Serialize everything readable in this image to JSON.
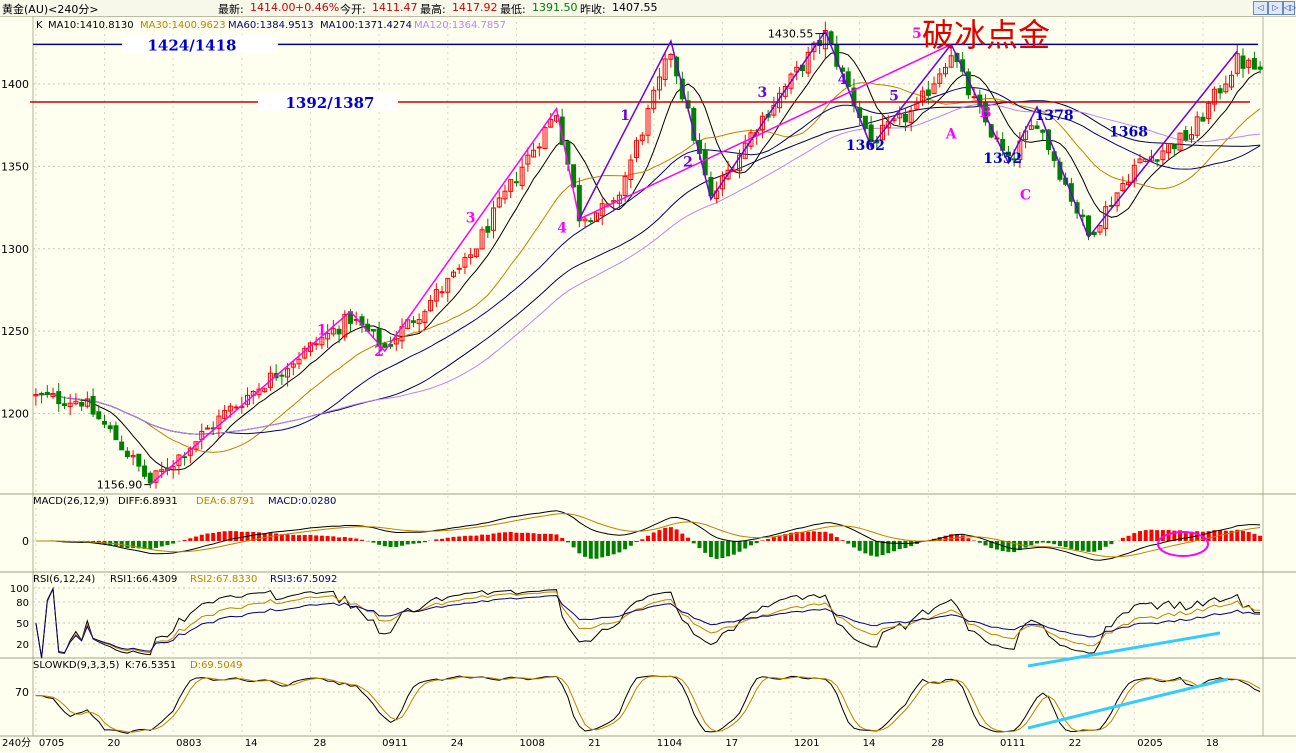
{
  "header": {
    "symbol": "黄金(AU)<240分>",
    "latest_label": "最新:",
    "latest_value": "1414.00",
    "change": "+0.46%",
    "open_label": "今开:",
    "open_value": "1411.47",
    "high_label": "最高:",
    "high_value": "1417.92",
    "low_label": "最低:",
    "low_value": "1391.50",
    "prev_close_label": "昨收:",
    "prev_close_value": "1407.55"
  },
  "nav_buttons": [
    "◁",
    "▷",
    "◁▷"
  ],
  "colors": {
    "ma10": "#000000",
    "ma30": "#c08000",
    "ma60": "#000080",
    "ma100": "#00004a",
    "ma120": "#c080ff",
    "up": "#ff0000",
    "down": "#008000",
    "magenta": "#ff00ff",
    "wave": "#7000e0",
    "annot": "#0000cc",
    "res": "#00008b",
    "sup": "#cc0000",
    "trend": "#33ccff"
  },
  "chart_data": [
    {
      "type": "candlestick",
      "panel": "price",
      "ma_legend": {
        "k": "K",
        "ma10": "MA10:1410.8130",
        "ma30": "MA30:1400.9623",
        "ma60": "MA60:1384.9513",
        "ma100": "MA100:1371.4274",
        "ma120": "MA120:1364.7857"
      },
      "ylim": [
        1150,
        1440
      ],
      "yticks": [
        1200,
        1250,
        1300,
        1350,
        1400
      ],
      "xlabel_prefix": "240分",
      "xticks": [
        {
          "i": 0,
          "label": "0705"
        },
        {
          "i": 12,
          "label": "20"
        },
        {
          "i": 24,
          "label": "0803"
        },
        {
          "i": 36,
          "label": "14"
        },
        {
          "i": 48,
          "label": "28"
        },
        {
          "i": 60,
          "label": "0911"
        },
        {
          "i": 72,
          "label": "24"
        },
        {
          "i": 84,
          "label": "1008"
        },
        {
          "i": 96,
          "label": "21"
        },
        {
          "i": 108,
          "label": "1104"
        },
        {
          "i": 120,
          "label": "17"
        },
        {
          "i": 132,
          "label": "1201"
        },
        {
          "i": 144,
          "label": "14"
        },
        {
          "i": 156,
          "label": "28"
        },
        {
          "i": 168,
          "label": "0111"
        },
        {
          "i": 180,
          "label": "22"
        },
        {
          "i": 192,
          "label": "0205"
        },
        {
          "i": 204,
          "label": "18"
        }
      ],
      "bar_count": 215,
      "anchors": [
        [
          0,
          1210
        ],
        [
          8,
          1208
        ],
        [
          14,
          1185
        ],
        [
          20,
          1158
        ],
        [
          33,
          1200
        ],
        [
          44,
          1230
        ],
        [
          55,
          1258
        ],
        [
          61,
          1240
        ],
        [
          75,
          1290
        ],
        [
          85,
          1350
        ],
        [
          91,
          1383
        ],
        [
          95,
          1320
        ],
        [
          101,
          1325
        ],
        [
          111,
          1420
        ],
        [
          118,
          1330
        ],
        [
          126,
          1375
        ],
        [
          138,
          1430
        ],
        [
          146,
          1365
        ],
        [
          154,
          1385
        ],
        [
          160,
          1420
        ],
        [
          163,
          1395
        ],
        [
          170,
          1352
        ],
        [
          175,
          1378
        ],
        [
          184,
          1308
        ],
        [
          192,
          1350
        ],
        [
          202,
          1370
        ],
        [
          210,
          1414
        ],
        [
          214,
          1408
        ]
      ],
      "resistance": {
        "value": 1424,
        "label": "1424/1418"
      },
      "support": {
        "value": 1389,
        "label": "1392/1387"
      },
      "high_marker": {
        "i": 138,
        "value": 1430.55,
        "label": "1430.55"
      },
      "low_marker": {
        "i": 20,
        "value": 1156.9,
        "label": "1156.90"
      },
      "level_labels": [
        {
          "i": 145,
          "v": 1360,
          "text": "1362"
        },
        {
          "i": 169,
          "v": 1352,
          "text": "1352"
        },
        {
          "i": 178,
          "v": 1378,
          "text": "1378"
        },
        {
          "i": 191,
          "v": 1368,
          "text": "1368"
        }
      ],
      "wave_labels": [
        {
          "i": 50,
          "v": 1248,
          "text": "1",
          "color": "magenta"
        },
        {
          "i": 60,
          "v": 1235,
          "text": "2",
          "color": "magenta"
        },
        {
          "i": 76,
          "v": 1316,
          "text": "3",
          "color": "magenta"
        },
        {
          "i": 92,
          "v": 1310,
          "text": "4",
          "color": "magenta"
        },
        {
          "i": 154,
          "v": 1428,
          "text": "5",
          "color": "magenta"
        },
        {
          "i": 103,
          "v": 1378,
          "text": "1",
          "color": "wave"
        },
        {
          "i": 114,
          "v": 1350,
          "text": "2",
          "color": "wave"
        },
        {
          "i": 127,
          "v": 1392,
          "text": "3",
          "color": "wave"
        },
        {
          "i": 141,
          "v": 1400,
          "text": "4",
          "color": "wave"
        },
        {
          "i": 150,
          "v": 1390,
          "text": "5",
          "color": "wave"
        },
        {
          "i": 160,
          "v": 1367,
          "text": "A",
          "color": "magenta"
        },
        {
          "i": 166,
          "v": 1380,
          "text": "B",
          "color": "magenta"
        },
        {
          "i": 173,
          "v": 1330,
          "text": "C",
          "color": "magenta"
        }
      ],
      "title_annotation": "破冰点金"
    },
    {
      "type": "bar",
      "panel": "macd",
      "legend": {
        "name": "MACD(26,12,9)",
        "diff": "DIFF:6.8931",
        "dea": "DEA:6.8791",
        "macd": "MACD:0.0280"
      },
      "ylim": [
        -30,
        30
      ],
      "yticks": [
        0
      ]
    },
    {
      "type": "line",
      "panel": "rsi",
      "legend": {
        "name": "RSI(6,12,24)",
        "rsi1": "RSI1:66.4309",
        "rsi2": "RSI2:67.8330",
        "rsi3": "RSI3:67.5092"
      },
      "ylim": [
        0,
        100
      ],
      "yticks": [
        20,
        50,
        80,
        100
      ]
    },
    {
      "type": "line",
      "panel": "kd",
      "legend": {
        "name": "SLOWKD(9,3,3,5)",
        "k": "K:76.5351",
        "d": "D:69.5049"
      },
      "ylim": [
        0,
        100
      ],
      "yticks": [
        70
      ]
    }
  ]
}
